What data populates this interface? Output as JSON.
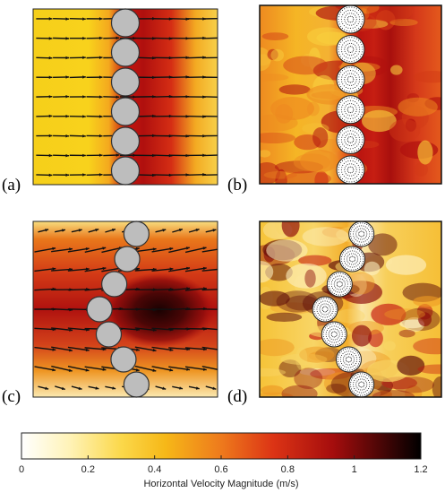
{
  "panels": [
    {
      "label": "(a)",
      "kind": "experiment",
      "circle_x": [
        0.5,
        0.5,
        0.5,
        0.5,
        0.5,
        0.5
      ]
    },
    {
      "label": "(b)",
      "kind": "simulation",
      "circle_x": [
        0.5,
        0.5,
        0.5,
        0.5,
        0.5,
        0.5
      ]
    },
    {
      "label": "(c)",
      "kind": "experiment",
      "circle_x": [
        0.56,
        0.51,
        0.44,
        0.36,
        0.41,
        0.49,
        0.56
      ]
    },
    {
      "label": "(d)",
      "kind": "simulation",
      "circle_x": [
        0.56,
        0.51,
        0.44,
        0.36,
        0.41,
        0.49,
        0.56
      ]
    }
  ],
  "colors": {
    "scale": [
      "#ffffff",
      "#fde27a",
      "#f9c913",
      "#f2a01a",
      "#e0521c",
      "#c4140f",
      "#7a0a0a",
      "#000000"
    ],
    "circle_fill": "#bdbdbd",
    "arrow": "#111111"
  },
  "chart_data": {
    "type": "heatmap",
    "colorbar": {
      "title": "Horizontal Velocity Magnitude (m/s)",
      "range": [
        0,
        1.2
      ],
      "ticks": [
        "0",
        "0.2",
        "0.4",
        "0.6",
        "0.8",
        "1",
        "1.2"
      ]
    }
  }
}
